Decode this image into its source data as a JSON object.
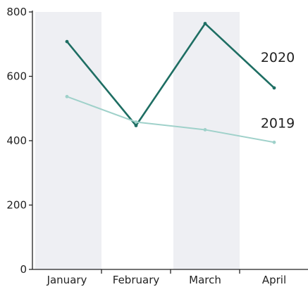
{
  "chart_data": {
    "type": "line",
    "categories": [
      "January",
      "February",
      "March",
      "April"
    ],
    "ylim": [
      0,
      800
    ],
    "yticks": [
      0,
      200,
      400,
      600,
      800
    ],
    "shaded_categories": [
      "January",
      "March"
    ],
    "grid": false,
    "series": [
      {
        "name": "2020",
        "values": [
          708,
          447,
          764,
          564
        ],
        "color": "#1e6e63"
      },
      {
        "name": "2019",
        "values": [
          537,
          458,
          434,
          395
        ],
        "color": "#9fd1ca"
      }
    ],
    "band_color": "#eeeff3",
    "axis_color": "#222222"
  }
}
